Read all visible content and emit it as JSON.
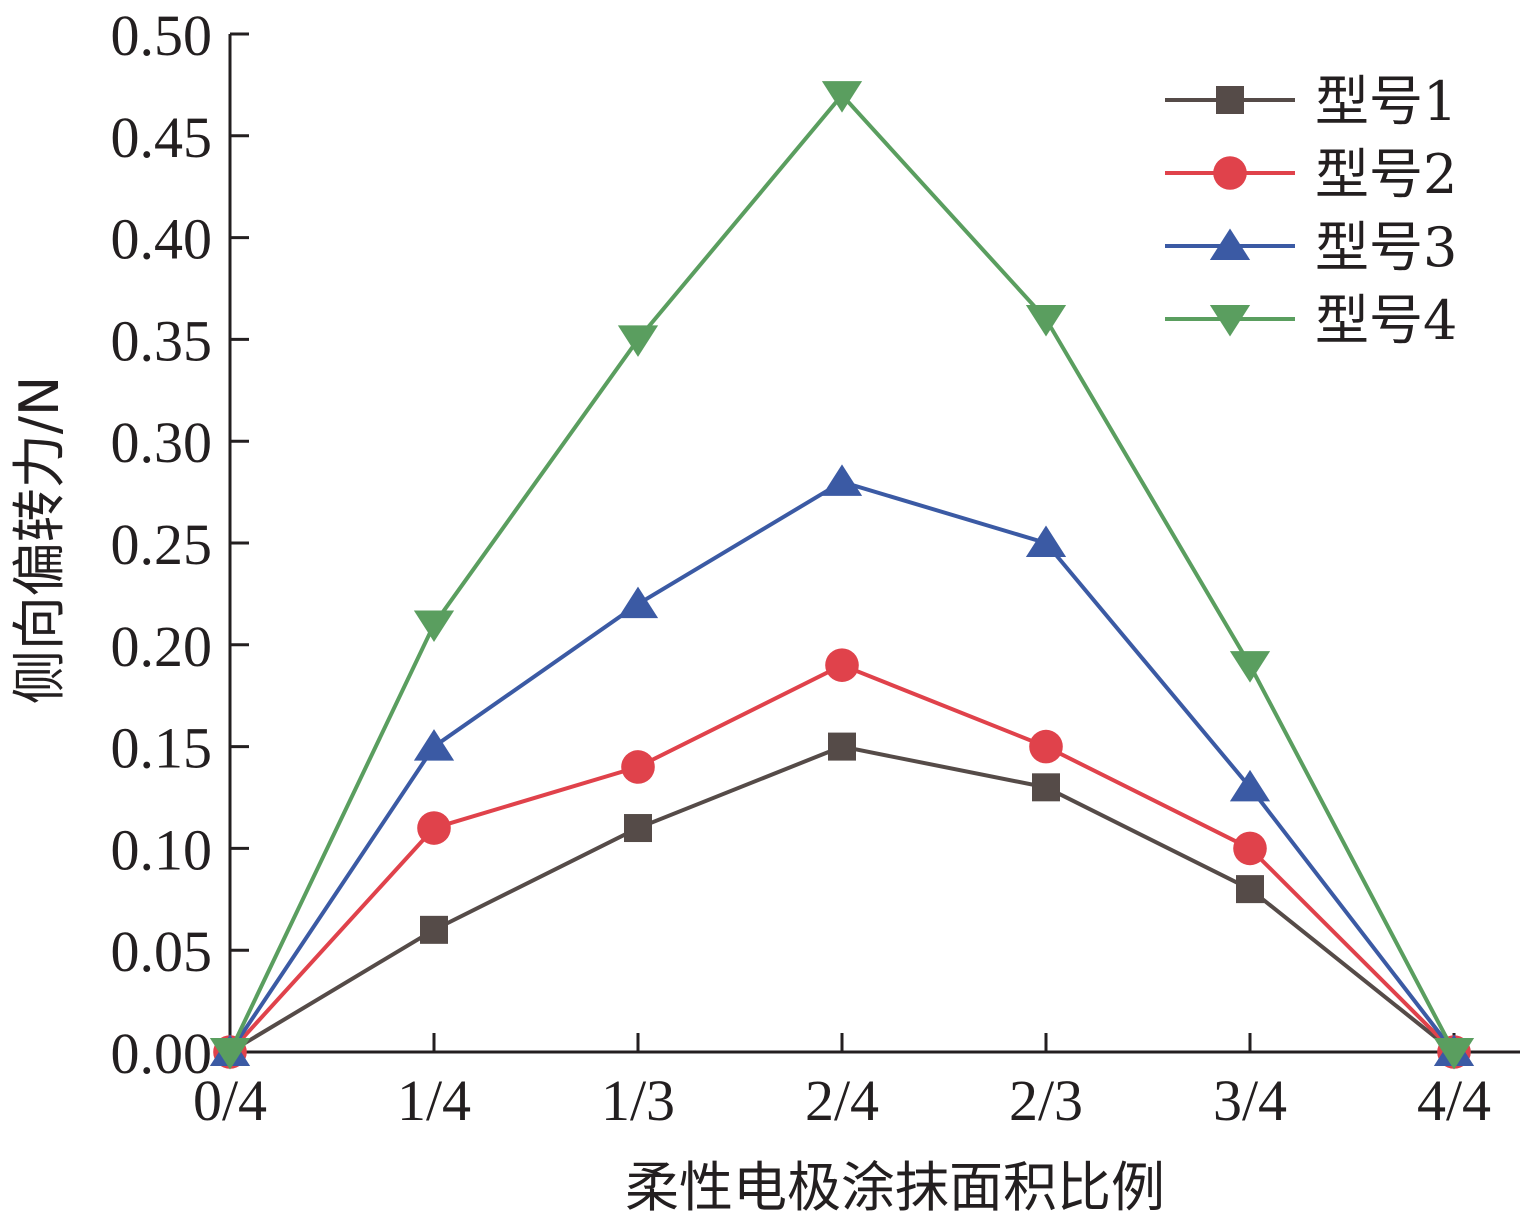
{
  "chart_data": {
    "type": "line",
    "xlabel": "柔性电极涂抹面积比例",
    "ylabel": "侧向偏转力/N",
    "categories": [
      "0/4",
      "1/4",
      "1/3",
      "2/4",
      "2/3",
      "3/4",
      "4/4"
    ],
    "ylim": [
      0,
      0.5
    ],
    "yticks": [
      "0.00",
      "0.05",
      "0.10",
      "0.15",
      "0.20",
      "0.25",
      "0.30",
      "0.35",
      "0.40",
      "0.45",
      "0.50"
    ],
    "grid": false,
    "legend_position": "top-right",
    "series": [
      {
        "name": "型号1",
        "marker": "square",
        "color": "#554b48",
        "values": [
          0.0,
          0.06,
          0.11,
          0.15,
          0.13,
          0.08,
          0.0
        ]
      },
      {
        "name": "型号2",
        "marker": "circle",
        "color": "#e0424b",
        "values": [
          0.0,
          0.11,
          0.14,
          0.19,
          0.15,
          0.1,
          0.0
        ]
      },
      {
        "name": "型号3",
        "marker": "triangle-up",
        "color": "#3b5aa4",
        "values": [
          0.0,
          0.15,
          0.22,
          0.28,
          0.25,
          0.13,
          0.0
        ]
      },
      {
        "name": "型号4",
        "marker": "triangle-down",
        "color": "#5a9e5f",
        "values": [
          0.0,
          0.21,
          0.35,
          0.47,
          0.36,
          0.19,
          0.0
        ]
      }
    ]
  }
}
